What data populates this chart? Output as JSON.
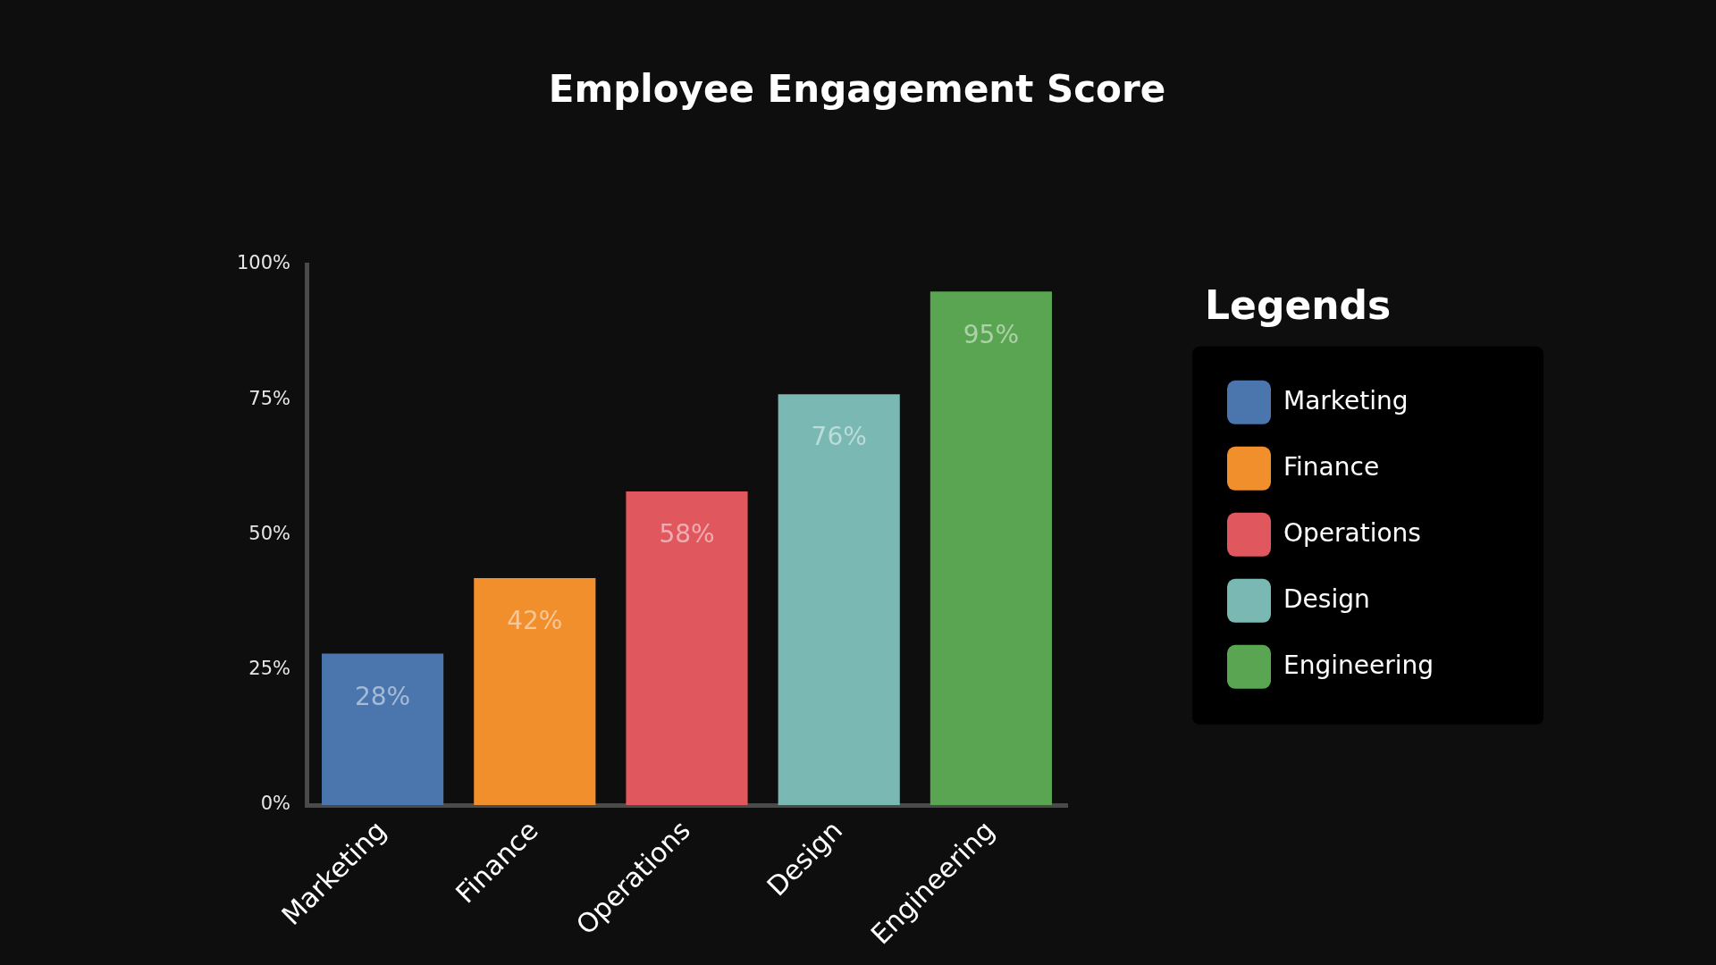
{
  "chart_data": {
    "type": "bar",
    "title": "Employee Engagement Score",
    "categories": [
      "Marketing",
      "Finance",
      "Operations",
      "Design",
      "Engineering"
    ],
    "series": [
      {
        "name": "Marketing",
        "color": "#4b76ad",
        "values": [
          28,
          null,
          null,
          null,
          null
        ],
        "value_labels": [
          "28%",
          null,
          null,
          null,
          null
        ]
      },
      {
        "name": "Finance",
        "color": "#f18f2c",
        "values": [
          null,
          42,
          null,
          null,
          null
        ],
        "value_labels": [
          null,
          "42%",
          null,
          null,
          null
        ]
      },
      {
        "name": "Operations",
        "color": "#e0585e",
        "values": [
          null,
          null,
          58,
          null,
          null
        ],
        "value_labels": [
          null,
          null,
          "58%",
          null,
          null
        ]
      },
      {
        "name": "Design",
        "color": "#79b8b3",
        "values": [
          null,
          null,
          null,
          76,
          null
        ],
        "value_labels": [
          null,
          null,
          null,
          "76%",
          null
        ]
      },
      {
        "name": "Engineering",
        "color": "#5aa552",
        "values": [
          null,
          null,
          null,
          null,
          95
        ],
        "value_labels": [
          null,
          null,
          null,
          null,
          "95%"
        ]
      }
    ],
    "ylim": [
      0,
      100
    ],
    "yticks": [
      {
        "value": 0,
        "label": "0%"
      },
      {
        "value": 25,
        "label": "25%"
      },
      {
        "value": 50,
        "label": "50%"
      },
      {
        "value": 75,
        "label": "75%"
      },
      {
        "value": 100,
        "label": "100%"
      }
    ],
    "legend": "right",
    "legend_title": "Legends"
  }
}
